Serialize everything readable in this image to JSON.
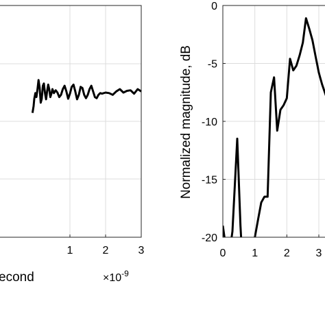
{
  "chart_data": [
    {
      "type": "line",
      "xlabel": "econd",
      "ylabel": "",
      "exponent_base": "×10",
      "exponent_power": "-9",
      "xlim": [
        -1.0,
        3.0
      ],
      "x_ticks": [
        "1",
        "2",
        "3"
      ],
      "x_tick_values": [
        1,
        2,
        3
      ],
      "y_ticks": [],
      "grid": true,
      "series": [
        {
          "x": [
            -0.05,
            -0.02,
            0.0,
            0.03,
            0.06,
            0.09,
            0.12,
            0.15,
            0.18,
            0.21,
            0.24,
            0.27,
            0.3,
            0.33,
            0.36,
            0.39,
            0.42,
            0.45,
            0.48,
            0.51,
            0.55,
            0.6,
            0.65,
            0.7,
            0.75,
            0.8,
            0.85,
            0.9,
            0.95,
            1.0,
            1.05,
            1.1,
            1.15,
            1.2,
            1.25,
            1.3,
            1.35,
            1.4,
            1.45,
            1.5,
            1.55,
            1.6,
            1.65,
            1.7,
            1.75,
            1.8,
            1.85,
            1.9,
            2.0,
            2.1,
            2.2,
            2.3,
            2.4,
            2.5,
            2.6,
            2.7,
            2.8,
            2.9,
            3.0
          ],
          "y": [
            -0.3,
            -0.18,
            -0.05,
            0.05,
            -0.02,
            0.12,
            0.28,
            0.15,
            -0.12,
            -0.05,
            0.18,
            0.22,
            0.05,
            -0.06,
            0.08,
            0.2,
            0.12,
            -0.02,
            0.04,
            0.12,
            0.05,
            0.1,
            0.06,
            -0.02,
            0.02,
            0.12,
            0.18,
            0.08,
            -0.05,
            0.04,
            0.16,
            0.2,
            0.08,
            -0.06,
            0.02,
            0.16,
            0.14,
            0.02,
            -0.04,
            0.02,
            0.12,
            0.18,
            0.08,
            -0.02,
            -0.04,
            0.02,
            0.05,
            0.04,
            0.06,
            0.05,
            0.02,
            0.08,
            0.12,
            0.06,
            0.09,
            0.1,
            0.04,
            0.12,
            0.08
          ]
        }
      ]
    },
    {
      "type": "line",
      "xlabel": "",
      "ylabel": "Normalized magnitude, dB",
      "xlim": [
        0,
        3.5
      ],
      "ylim": [
        -20,
        0
      ],
      "x_ticks": [
        "0",
        "1",
        "2",
        "3"
      ],
      "x_tick_values": [
        0,
        1,
        2,
        3
      ],
      "y_ticks": [
        "0",
        "-5",
        "-10",
        "-15",
        "-20"
      ],
      "y_tick_values": [
        0,
        -5,
        -10,
        -15,
        -20
      ],
      "grid": true,
      "series": [
        {
          "x": [
            0.0,
            0.1,
            0.2,
            0.3,
            0.45,
            0.55,
            0.6,
            0.9,
            1.0,
            1.1,
            1.2,
            1.3,
            1.4,
            1.5,
            1.6,
            1.7,
            1.8,
            1.9,
            2.0,
            2.1,
            2.2,
            2.3,
            2.4,
            2.5,
            2.6,
            2.7,
            2.8,
            2.9,
            3.0,
            3.1,
            3.2,
            3.3
          ],
          "y": [
            -19.0,
            -21.0,
            -21.5,
            -19.5,
            -11.5,
            -19.0,
            -21.5,
            -21.5,
            -20.0,
            -18.5,
            -17.0,
            -16.5,
            -16.5,
            -7.5,
            -6.2,
            -10.8,
            -9.0,
            -8.6,
            -8.0,
            -4.6,
            -5.6,
            -5.2,
            -4.3,
            -3.2,
            -1.1,
            -2.0,
            -3.0,
            -4.4,
            -5.8,
            -6.8,
            -7.6,
            -8.4
          ]
        }
      ]
    }
  ]
}
